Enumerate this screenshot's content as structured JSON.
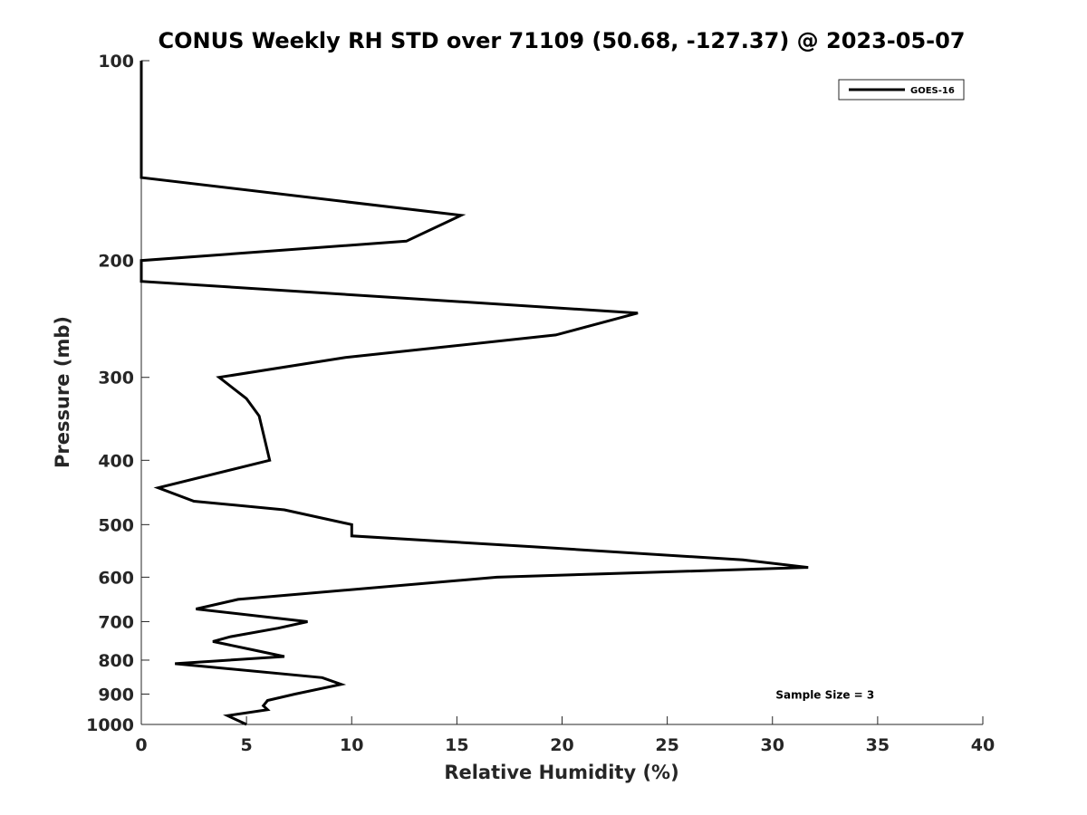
{
  "chart_data": {
    "type": "line",
    "title": "CONUS Weekly RH STD over 71109 (50.68, -127.37) @ 2023-05-07",
    "xlabel": "Relative Humidity (%)",
    "ylabel": "Pressure (mb)",
    "xlim": [
      0,
      40
    ],
    "ylim": [
      1000,
      100
    ],
    "y_scale": "log",
    "y_reversed": true,
    "x_ticks": [
      0,
      5,
      10,
      15,
      20,
      25,
      30,
      35,
      40
    ],
    "y_ticks": [
      100,
      200,
      300,
      400,
      500,
      600,
      700,
      800,
      900,
      1000
    ],
    "grid": false,
    "legend_position": "top-right",
    "series": [
      {
        "name": "GOES-16",
        "color": "#000000",
        "points": [
          {
            "x": 0,
            "y": 100
          },
          {
            "x": 0,
            "y": 150
          },
          {
            "x": 15.2,
            "y": 171
          },
          {
            "x": 12.6,
            "y": 187
          },
          {
            "x": 0,
            "y": 200
          },
          {
            "x": 0,
            "y": 215
          },
          {
            "x": 23.6,
            "y": 240
          },
          {
            "x": 19.7,
            "y": 259
          },
          {
            "x": 9.7,
            "y": 280
          },
          {
            "x": 3.7,
            "y": 300
          },
          {
            "x": 5.0,
            "y": 323
          },
          {
            "x": 5.6,
            "y": 343
          },
          {
            "x": 6.1,
            "y": 400
          },
          {
            "x": 0.8,
            "y": 440
          },
          {
            "x": 2.5,
            "y": 461
          },
          {
            "x": 6.8,
            "y": 475
          },
          {
            "x": 10.0,
            "y": 500
          },
          {
            "x": 10.0,
            "y": 520
          },
          {
            "x": 18.6,
            "y": 540
          },
          {
            "x": 28.6,
            "y": 565
          },
          {
            "x": 31.7,
            "y": 580
          },
          {
            "x": 16.9,
            "y": 600
          },
          {
            "x": 4.6,
            "y": 648
          },
          {
            "x": 2.6,
            "y": 670
          },
          {
            "x": 7.9,
            "y": 700
          },
          {
            "x": 6.5,
            "y": 716
          },
          {
            "x": 4.2,
            "y": 738
          },
          {
            "x": 3.4,
            "y": 750
          },
          {
            "x": 5.3,
            "y": 772
          },
          {
            "x": 6.8,
            "y": 790
          },
          {
            "x": 1.6,
            "y": 810
          },
          {
            "x": 8.6,
            "y": 850
          },
          {
            "x": 9.5,
            "y": 870
          },
          {
            "x": 7.3,
            "y": 900
          },
          {
            "x": 6.0,
            "y": 920
          },
          {
            "x": 5.8,
            "y": 937
          },
          {
            "x": 6.0,
            "y": 950
          },
          {
            "x": 4.1,
            "y": 970
          },
          {
            "x": 5.0,
            "y": 1000
          }
        ]
      }
    ],
    "annotations": [
      {
        "text": "Sample Size = 3",
        "x": 32.5,
        "y": 900
      }
    ]
  }
}
